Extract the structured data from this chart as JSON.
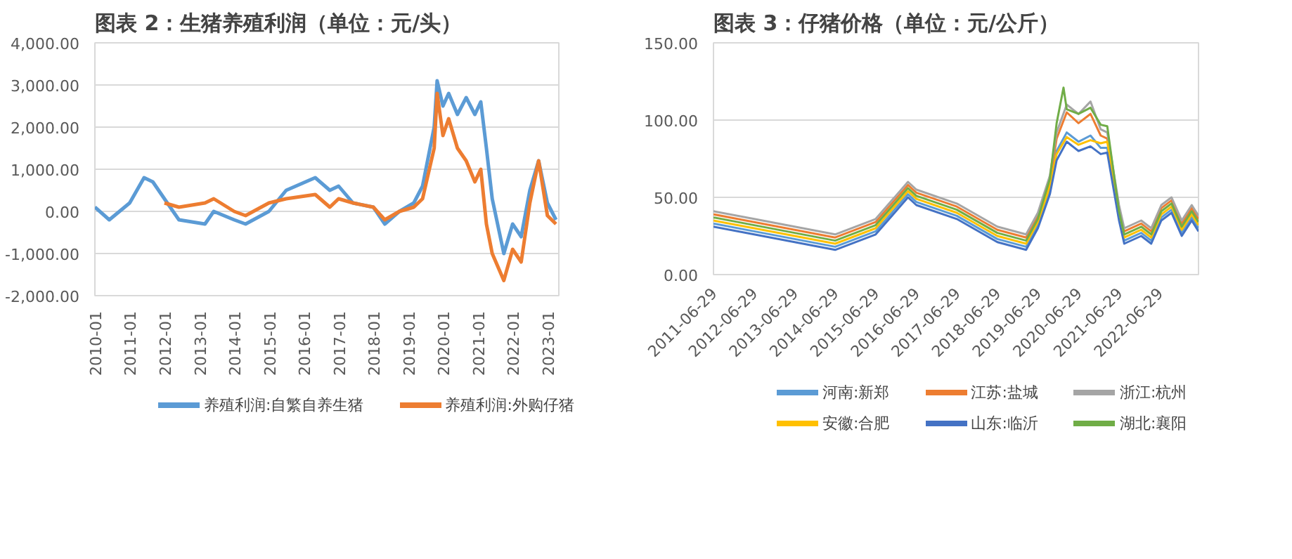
{
  "chart_data": [
    {
      "type": "line",
      "title": "图表 2：生猪养殖利润（单位：元/头）",
      "xlim": [
        "2010-01",
        "2023-05"
      ],
      "ylim": [
        -2000,
        4000
      ],
      "xticks": [
        "2010-01",
        "2011-01",
        "2012-01",
        "2013-01",
        "2014-01",
        "2015-01",
        "2016-01",
        "2017-01",
        "2018-01",
        "2019-01",
        "2020-01",
        "2021-01",
        "2022-01",
        "2023-01"
      ],
      "yticks": [
        {
          "value": -2000,
          "label": "-2,000.00"
        },
        {
          "value": -1000,
          "label": "-1,000.00"
        },
        {
          "value": 0,
          "label": "0.00"
        },
        {
          "value": 1000,
          "label": "1,000.00"
        },
        {
          "value": 2000,
          "label": "2,000.00"
        },
        {
          "value": 3000,
          "label": "3,000.00"
        },
        {
          "value": 4000,
          "label": "4,000.00"
        }
      ],
      "grid": "y",
      "legend": "bottom",
      "series": [
        {
          "name": "养殖利润:自繁自养生猪",
          "color": "#5b9bd5",
          "x": [
            "2010-01",
            "2010-06",
            "2011-01",
            "2011-06",
            "2011-09",
            "2012-03",
            "2012-06",
            "2013-03",
            "2013-06",
            "2014-01",
            "2014-05",
            "2015-01",
            "2015-07",
            "2016-05",
            "2016-10",
            "2017-01",
            "2017-06",
            "2018-01",
            "2018-05",
            "2018-10",
            "2019-03",
            "2019-06",
            "2019-10",
            "2019-11",
            "2020-01",
            "2020-03",
            "2020-06",
            "2020-09",
            "2020-12",
            "2021-02",
            "2021-04",
            "2021-06",
            "2021-10",
            "2022-01",
            "2022-04",
            "2022-07",
            "2022-10",
            "2023-01",
            "2023-04"
          ],
          "values": [
            100,
            -200,
            200,
            800,
            700,
            100,
            -200,
            -300,
            0,
            -200,
            -300,
            0,
            500,
            800,
            500,
            600,
            200,
            100,
            -300,
            0,
            200,
            600,
            2000,
            3100,
            2500,
            2800,
            2300,
            2700,
            2300,
            2600,
            1500,
            300,
            -1000,
            -300,
            -600,
            500,
            1200,
            200,
            -200
          ]
        },
        {
          "name": "养殖利润:外购仔猪",
          "color": "#ed7d31",
          "x": [
            "2012-01",
            "2012-06",
            "2013-03",
            "2013-06",
            "2014-01",
            "2014-05",
            "2015-01",
            "2015-07",
            "2016-05",
            "2016-10",
            "2017-01",
            "2017-06",
            "2018-01",
            "2018-05",
            "2018-10",
            "2019-03",
            "2019-06",
            "2019-10",
            "2019-11",
            "2020-01",
            "2020-03",
            "2020-06",
            "2020-09",
            "2020-12",
            "2021-02",
            "2021-04",
            "2021-06",
            "2021-10",
            "2022-01",
            "2022-04",
            "2022-07",
            "2022-10",
            "2023-01",
            "2023-04"
          ],
          "values": [
            200,
            100,
            200,
            300,
            0,
            -100,
            200,
            300,
            400,
            100,
            300,
            200,
            100,
            -200,
            0,
            100,
            300,
            1500,
            2800,
            1800,
            2200,
            1500,
            1200,
            700,
            1000,
            -300,
            -1000,
            -1640,
            -900,
            -1200,
            200,
            1200,
            -100,
            -300
          ]
        }
      ]
    },
    {
      "type": "line",
      "title": "图表 3：仔猪价格（单位：元/公斤）",
      "xlim": [
        "2011-06-29",
        "2023-06-15"
      ],
      "ylim": [
        0,
        150
      ],
      "xticks": [
        "2011-06-29",
        "2012-06-29",
        "2013-06-29",
        "2014-06-29",
        "2015-06-29",
        "2016-06-29",
        "2017-06-29",
        "2018-06-29",
        "2019-06-29",
        "2020-06-29",
        "2021-06-29",
        "2022-06-29"
      ],
      "yticks": [
        {
          "value": 0,
          "label": "0.00"
        },
        {
          "value": 50,
          "label": "50.00"
        },
        {
          "value": 100,
          "label": "100.00"
        },
        {
          "value": 150,
          "label": "150.00"
        }
      ],
      "grid": "y",
      "legend": "bottom",
      "series": [
        {
          "name": "河南:新郑",
          "color": "#5b9bd5",
          "x": [
            "2011-06-29",
            "2012-06-29",
            "2013-06-29",
            "2014-06-29",
            "2015-06-29",
            "2016-04-15",
            "2016-06-29",
            "2017-06-29",
            "2018-06-29",
            "2019-03-15",
            "2019-06-29",
            "2019-10-15",
            "2019-12-15",
            "2020-03-15",
            "2020-06-29",
            "2020-10-15",
            "2021-01-15",
            "2021-03-15",
            "2021-06-29",
            "2021-08-15",
            "2022-01-15",
            "2022-04-15",
            "2022-07-15",
            "2022-10-15",
            "2023-01-15",
            "2023-04-15",
            "2023-06-15"
          ],
          "values": [
            33,
            28,
            23,
            18,
            28,
            52,
            47,
            38,
            23,
            18,
            32,
            55,
            80,
            92,
            86,
            90,
            82,
            82,
            37,
            22,
            27,
            22,
            37,
            42,
            27,
            37,
            30
          ]
        },
        {
          "name": "江苏:盐城",
          "color": "#ed7d31",
          "x": [
            "2011-06-29",
            "2012-06-29",
            "2013-06-29",
            "2014-06-29",
            "2015-06-29",
            "2016-04-15",
            "2016-06-29",
            "2017-06-29",
            "2018-06-29",
            "2019-03-15",
            "2019-06-29",
            "2019-10-15",
            "2019-12-15",
            "2020-03-15",
            "2020-06-29",
            "2020-10-15",
            "2021-01-15",
            "2021-03-15",
            "2021-06-29",
            "2021-08-15",
            "2022-01-15",
            "2022-04-15",
            "2022-07-15",
            "2022-10-15",
            "2023-01-15",
            "2023-04-15",
            "2023-06-15"
          ],
          "values": [
            39,
            34,
            29,
            24,
            34,
            58,
            53,
            44,
            29,
            24,
            38,
            60,
            88,
            105,
            98,
            104,
            90,
            88,
            43,
            28,
            33,
            28,
            43,
            48,
            33,
            43,
            36
          ]
        },
        {
          "name": "浙江:杭州",
          "color": "#a5a5a5",
          "x": [
            "2011-06-29",
            "2012-06-29",
            "2013-06-29",
            "2014-06-29",
            "2015-06-29",
            "2016-04-15",
            "2016-06-29",
            "2017-06-29",
            "2018-06-29",
            "2019-03-15",
            "2019-06-29",
            "2019-10-15",
            "2019-12-15",
            "2020-03-15",
            "2020-06-29",
            "2020-10-15",
            "2021-01-15",
            "2021-03-15",
            "2021-06-29",
            "2021-08-15",
            "2022-01-15",
            "2022-04-15",
            "2022-07-15",
            "2022-10-15",
            "2023-01-15",
            "2023-04-15",
            "2023-06-15"
          ],
          "values": [
            41,
            36,
            31,
            26,
            36,
            60,
            55,
            46,
            31,
            26,
            40,
            64,
            92,
            110,
            104,
            112,
            94,
            92,
            45,
            30,
            35,
            30,
            45,
            50,
            35,
            45,
            38
          ]
        },
        {
          "name": "安徽:合肥",
          "color": "#ffc000",
          "x": [
            "2011-06-29",
            "2012-06-29",
            "2013-06-29",
            "2014-06-29",
            "2015-06-29",
            "2016-04-15",
            "2016-06-29",
            "2017-06-29",
            "2018-06-29",
            "2019-03-15",
            "2019-06-29",
            "2019-10-15",
            "2019-12-15",
            "2020-03-15",
            "2020-06-29",
            "2020-10-15",
            "2021-01-15",
            "2021-03-15",
            "2021-06-29",
            "2021-08-15",
            "2022-01-15",
            "2022-04-15",
            "2022-07-15",
            "2022-10-15",
            "2023-01-15",
            "2023-04-15",
            "2023-06-15"
          ],
          "values": [
            35,
            30,
            25,
            20,
            30,
            54,
            49,
            40,
            25,
            20,
            34,
            57,
            78,
            89,
            84,
            87,
            85,
            86,
            39,
            24,
            29,
            24,
            39,
            44,
            29,
            39,
            32
          ]
        },
        {
          "name": "山东:临沂",
          "color": "#4472c4",
          "x": [
            "2011-06-29",
            "2012-06-29",
            "2013-06-29",
            "2014-06-29",
            "2015-06-29",
            "2016-04-15",
            "2016-06-29",
            "2017-06-29",
            "2018-06-29",
            "2019-03-15",
            "2019-06-29",
            "2019-10-15",
            "2019-12-15",
            "2020-03-15",
            "2020-06-29",
            "2020-10-15",
            "2021-01-15",
            "2021-03-15",
            "2021-06-29",
            "2021-08-15",
            "2022-01-15",
            "2022-04-15",
            "2022-07-15",
            "2022-10-15",
            "2023-01-15",
            "2023-04-15",
            "2023-06-15"
          ],
          "values": [
            31,
            26,
            21,
            16,
            26,
            50,
            45,
            36,
            21,
            16,
            30,
            52,
            74,
            86,
            80,
            83,
            78,
            79,
            35,
            20,
            25,
            20,
            35,
            40,
            25,
            35,
            28
          ]
        },
        {
          "name": "湖北:襄阳",
          "color": "#70ad47",
          "x": [
            "2011-06-29",
            "2012-06-29",
            "2013-06-29",
            "2014-06-29",
            "2015-06-29",
            "2016-04-15",
            "2016-06-29",
            "2017-06-29",
            "2018-06-29",
            "2019-03-15",
            "2019-06-29",
            "2019-10-15",
            "2019-12-15",
            "2020-02-15",
            "2020-03-15",
            "2020-06-29",
            "2020-10-15",
            "2021-01-15",
            "2021-03-15",
            "2021-06-29",
            "2021-08-15",
            "2022-01-15",
            "2022-04-15",
            "2022-07-15",
            "2022-10-15",
            "2023-01-15",
            "2023-04-15",
            "2023-06-15"
          ],
          "values": [
            37,
            32,
            27,
            22,
            32,
            56,
            51,
            42,
            27,
            22,
            36,
            62,
            98,
            121,
            107,
            104,
            108,
            97,
            96,
            41,
            26,
            31,
            26,
            41,
            46,
            31,
            41,
            34
          ]
        }
      ]
    }
  ]
}
